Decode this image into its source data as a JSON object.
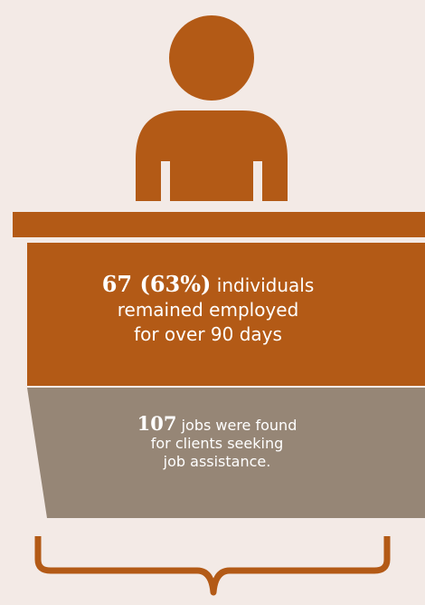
{
  "colors": {
    "background": "#f3eae6",
    "primary": "#b35a16",
    "secondary": "#968676",
    "text": "#ffffff"
  },
  "icons": {
    "person": "person-icon",
    "brace": "curly-brace-icon"
  },
  "stat_employed": {
    "number": "67 (63%)",
    "line1_rest": " individuals",
    "line2": "remained employed",
    "line3": "for over 90 days"
  },
  "stat_jobs": {
    "number": "107",
    "line1_rest": " jobs were found",
    "line2": "for clients seeking",
    "line3": "job assistance."
  }
}
